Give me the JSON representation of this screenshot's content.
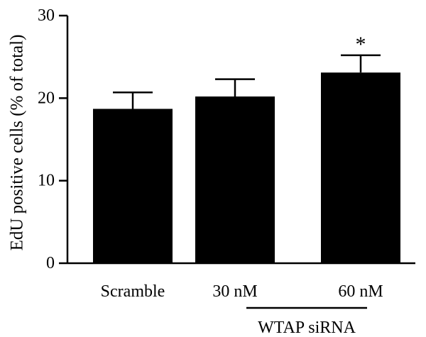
{
  "chart_data": {
    "type": "bar",
    "title": "",
    "xlabel": "",
    "ylabel": "EdU positive cells (% of total)",
    "categories": [
      "Scramble",
      "30 nM",
      "60 nM"
    ],
    "values": [
      18.7,
      20.2,
      23.1
    ],
    "errors": [
      2.0,
      2.1,
      2.1
    ],
    "significance": [
      "",
      "",
      "*"
    ],
    "ylim": [
      0,
      30
    ],
    "yticks": [
      0,
      10,
      20,
      30
    ],
    "ytick_labels": [
      "0",
      "10",
      "20",
      "30"
    ],
    "group": {
      "label": "WTAP siRNA",
      "categories": [
        "30 nM",
        "60 nM"
      ]
    },
    "bar_color": "#000000",
    "grid": false,
    "legend": "none"
  }
}
